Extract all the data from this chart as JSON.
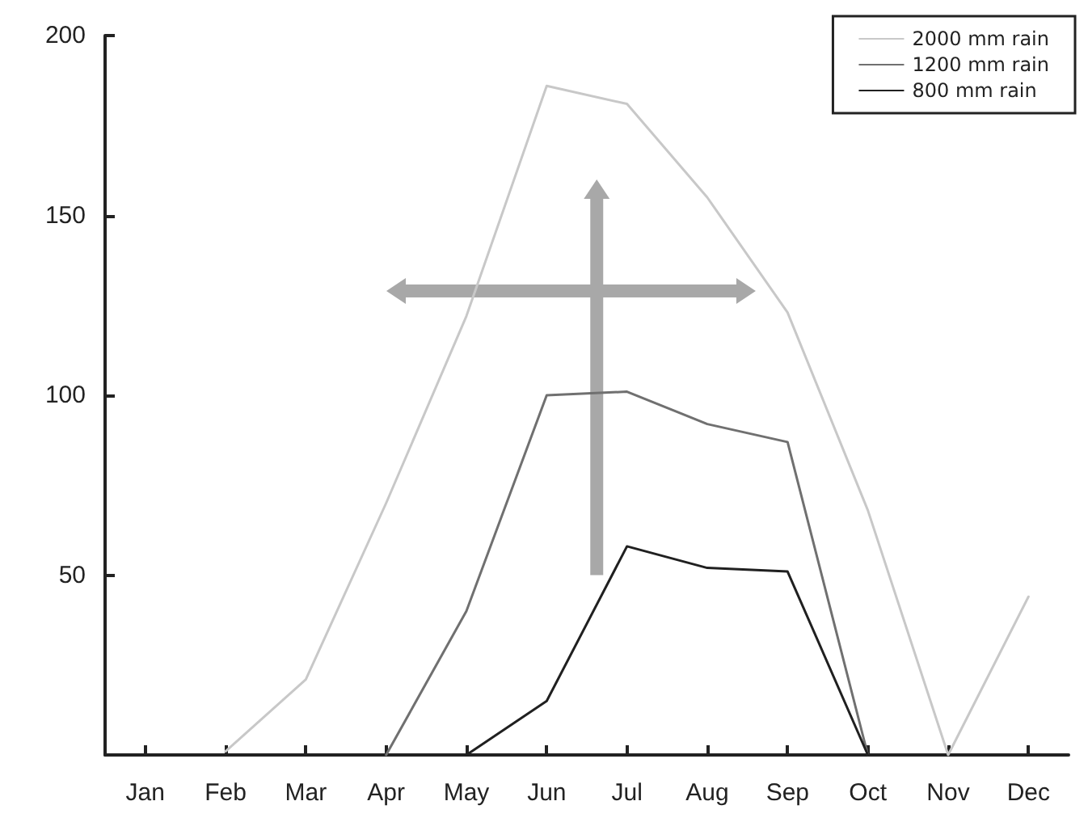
{
  "chart_data": {
    "type": "line",
    "categories": [
      "Jan",
      "Feb",
      "Mar",
      "Apr",
      "May",
      "Jun",
      "Jul",
      "Aug",
      "Sep",
      "Oct",
      "Nov",
      "Dec"
    ],
    "series": [
      {
        "name": "2000 mm rain",
        "color": "#c8c8c8",
        "values": [
          null,
          1,
          21,
          70,
          122,
          186,
          181,
          155,
          123,
          68,
          0,
          44
        ]
      },
      {
        "name": "1200 mm rain",
        "color": "#707070",
        "values": [
          null,
          null,
          null,
          0,
          40,
          100,
          101,
          92,
          87,
          0,
          null,
          null
        ]
      },
      {
        "name": "800 mm rain",
        "color": "#202020",
        "values": [
          null,
          null,
          null,
          null,
          0,
          15,
          58,
          52,
          51,
          0,
          null,
          null
        ]
      }
    ],
    "ylim": [
      0,
      200
    ],
    "yticks": [
      50,
      100,
      150,
      200
    ],
    "grid": false,
    "legend": "top right",
    "marker": "none",
    "line_style": "solid"
  }
}
